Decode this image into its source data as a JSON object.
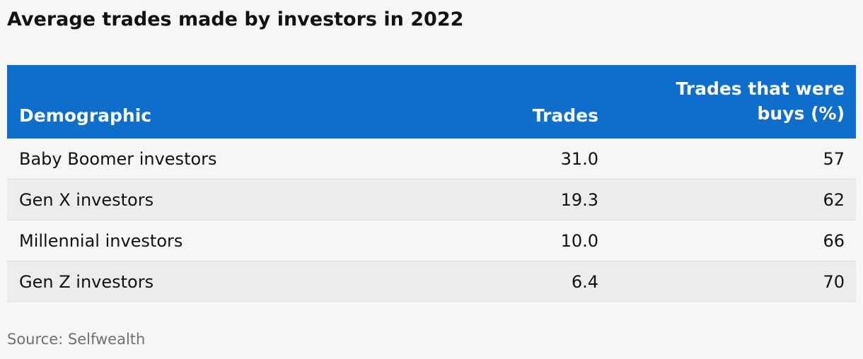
{
  "title": "Average trades made by investors in 2022",
  "source": "Source: Selfwealth",
  "colors": {
    "header_bg": "#0f6ecc",
    "header_text": "#ffffff",
    "row_alt_bg": "#ececec",
    "background": "#f6f6f6"
  },
  "chart_data": {
    "type": "table",
    "title": "Average trades made by investors in 2022",
    "columns": [
      "Demographic",
      "Trades",
      "Trades that were buys (%)"
    ],
    "header_lines": {
      "buys": [
        "Trades that were",
        "buys (%)"
      ]
    },
    "rows": [
      {
        "demographic": "Baby Boomer investors",
        "trades": "31.0",
        "buys": "57"
      },
      {
        "demographic": "Gen X investors",
        "trades": "19.3",
        "buys": "62"
      },
      {
        "demographic": "Millennial investors",
        "trades": "10.0",
        "buys": "66"
      },
      {
        "demographic": "Gen Z investors",
        "trades": "6.4",
        "buys": "70"
      }
    ]
  }
}
